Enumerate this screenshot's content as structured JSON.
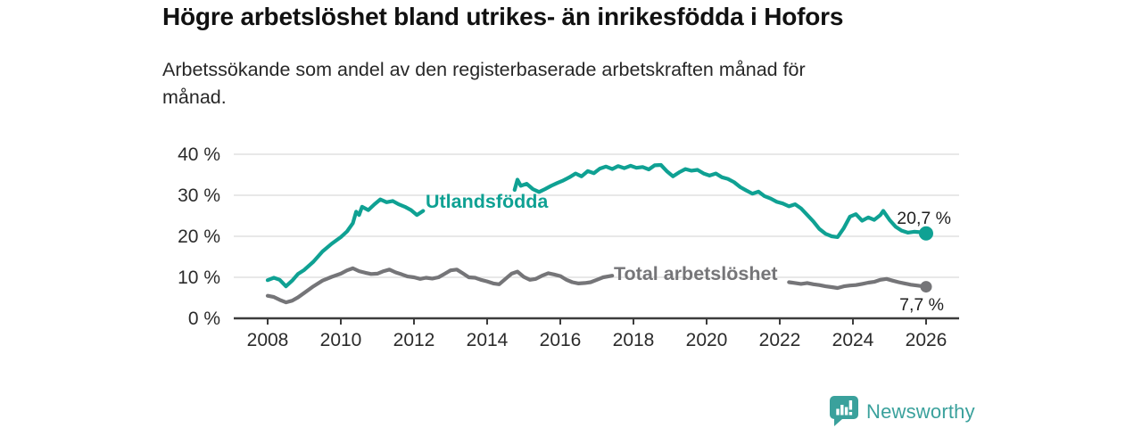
{
  "header": {
    "title": "Högre arbetslöshet bland utrikes- än inrikesfödda i Hofors",
    "subtitle_lines": [
      "Arbetssökande som andel av den registerbaserade arbetskraften månad för",
      "månad."
    ]
  },
  "footer": {
    "brand": "Newsworthy",
    "brand_color": "#3aa19c",
    "logo_icon": "speech-bubble-bar-chart-icon"
  },
  "chart_data": {
    "type": "line",
    "title": "Högre arbetslöshet bland utrikes- än inrikesfödda i Hofors",
    "subtitle": "Arbetssökande som andel av den registerbaserade arbetskraften månad för månad.",
    "grid": "horizontal",
    "legend_position": "inline-labels",
    "colors": {
      "accent_teal": "#0fa193",
      "neutral_gray": "#757578",
      "gridline": "#dbdbdb",
      "axis": "#3c3c3c",
      "text": "#2b2b2b"
    },
    "x_axis": {
      "label": "",
      "range": [
        2007.5,
        2026.9
      ],
      "ticks": [
        {
          "value": 2008,
          "label": "2008"
        },
        {
          "value": 2010,
          "label": "2010"
        },
        {
          "value": 2012,
          "label": "2012"
        },
        {
          "value": 2014,
          "label": "2014"
        },
        {
          "value": 2016,
          "label": "2016"
        },
        {
          "value": 2018,
          "label": "2018"
        },
        {
          "value": 2020,
          "label": "2020"
        },
        {
          "value": 2022,
          "label": "2022"
        },
        {
          "value": 2024,
          "label": "2024"
        },
        {
          "value": 2026,
          "label": "2026"
        }
      ]
    },
    "y_axis": {
      "label": "",
      "unit": "%",
      "range": [
        0,
        42
      ],
      "ticks": [
        {
          "value": 0,
          "label": "0 %"
        },
        {
          "value": 10,
          "label": "10 %"
        },
        {
          "value": 20,
          "label": "20 %"
        },
        {
          "value": 30,
          "label": "30 %"
        },
        {
          "value": 40,
          "label": "40 %"
        }
      ]
    },
    "series": [
      {
        "name": "Utlandsfödda",
        "color": "#0fa193",
        "inline_label": "Utlandsfödda",
        "end_label": "20,7 %",
        "end_value": 20.7,
        "end_dot": true,
        "segments": [
          [
            [
              2008.0,
              9.3
            ],
            [
              2008.17,
              9.9
            ],
            [
              2008.33,
              9.4
            ],
            [
              2008.5,
              7.8
            ],
            [
              2008.67,
              9.2
            ],
            [
              2008.83,
              10.8
            ],
            [
              2009.0,
              11.8
            ],
            [
              2009.25,
              13.8
            ],
            [
              2009.5,
              16.3
            ],
            [
              2009.75,
              18.2
            ],
            [
              2010.0,
              19.8
            ],
            [
              2010.17,
              21.2
            ],
            [
              2010.33,
              23.2
            ],
            [
              2010.42,
              26.0
            ],
            [
              2010.5,
              25.2
            ],
            [
              2010.58,
              27.2
            ],
            [
              2010.75,
              26.4
            ],
            [
              2010.92,
              27.8
            ],
            [
              2011.08,
              29.0
            ],
            [
              2011.25,
              28.3
            ],
            [
              2011.42,
              28.6
            ],
            [
              2011.58,
              27.8
            ],
            [
              2011.75,
              27.2
            ],
            [
              2011.92,
              26.4
            ],
            [
              2012.08,
              25.2
            ],
            [
              2012.25,
              26.2
            ]
          ],
          [
            [
              2014.75,
              31.3
            ],
            [
              2014.83,
              33.8
            ],
            [
              2014.92,
              32.3
            ],
            [
              2015.08,
              32.8
            ],
            [
              2015.25,
              31.5
            ],
            [
              2015.42,
              30.8
            ],
            [
              2015.58,
              31.5
            ],
            [
              2015.75,
              32.3
            ],
            [
              2015.92,
              33.0
            ],
            [
              2016.08,
              33.6
            ],
            [
              2016.25,
              34.4
            ],
            [
              2016.42,
              35.3
            ],
            [
              2016.58,
              34.6
            ],
            [
              2016.75,
              35.9
            ],
            [
              2016.92,
              35.4
            ],
            [
              2017.08,
              36.5
            ],
            [
              2017.25,
              37.0
            ],
            [
              2017.42,
              36.4
            ],
            [
              2017.58,
              37.1
            ],
            [
              2017.75,
              36.6
            ],
            [
              2017.92,
              37.2
            ],
            [
              2018.08,
              36.7
            ],
            [
              2018.25,
              36.9
            ],
            [
              2018.42,
              36.3
            ],
            [
              2018.58,
              37.3
            ],
            [
              2018.75,
              37.4
            ],
            [
              2018.92,
              35.8
            ],
            [
              2019.08,
              34.6
            ],
            [
              2019.25,
              35.6
            ],
            [
              2019.42,
              36.4
            ],
            [
              2019.58,
              36.0
            ],
            [
              2019.75,
              36.2
            ],
            [
              2019.92,
              35.3
            ],
            [
              2020.08,
              34.8
            ],
            [
              2020.25,
              35.3
            ],
            [
              2020.42,
              34.4
            ],
            [
              2020.58,
              34.0
            ],
            [
              2020.75,
              33.2
            ],
            [
              2020.92,
              32.0
            ],
            [
              2021.08,
              31.2
            ],
            [
              2021.25,
              30.4
            ],
            [
              2021.42,
              30.9
            ],
            [
              2021.58,
              29.8
            ],
            [
              2021.75,
              29.2
            ],
            [
              2021.92,
              28.4
            ],
            [
              2022.08,
              28.0
            ],
            [
              2022.25,
              27.3
            ],
            [
              2022.42,
              27.8
            ],
            [
              2022.58,
              26.8
            ],
            [
              2022.75,
              25.2
            ],
            [
              2022.92,
              23.6
            ],
            [
              2023.08,
              21.8
            ],
            [
              2023.25,
              20.6
            ],
            [
              2023.42,
              20.0
            ],
            [
              2023.58,
              19.8
            ],
            [
              2023.75,
              22.0
            ],
            [
              2023.92,
              24.8
            ],
            [
              2024.08,
              25.4
            ],
            [
              2024.25,
              23.8
            ],
            [
              2024.42,
              24.6
            ],
            [
              2024.58,
              24.0
            ],
            [
              2024.75,
              25.2
            ],
            [
              2024.83,
              26.2
            ],
            [
              2025.0,
              24.0
            ],
            [
              2025.17,
              22.3
            ],
            [
              2025.33,
              21.4
            ],
            [
              2025.5,
              20.9
            ],
            [
              2025.67,
              21.1
            ],
            [
              2025.83,
              21.0
            ],
            [
              2026.0,
              20.7
            ]
          ]
        ]
      },
      {
        "name": "Total arbetslöshet",
        "color": "#757578",
        "inline_label": "Total arbetslöshet",
        "end_label": "7,7 %",
        "end_value": 7.7,
        "end_dot": true,
        "segments": [
          [
            [
              2008.0,
              5.5
            ],
            [
              2008.17,
              5.2
            ],
            [
              2008.33,
              4.5
            ],
            [
              2008.5,
              3.9
            ],
            [
              2008.67,
              4.3
            ],
            [
              2008.83,
              5.1
            ],
            [
              2009.0,
              6.2
            ],
            [
              2009.25,
              7.8
            ],
            [
              2009.5,
              9.2
            ],
            [
              2009.75,
              10.1
            ],
            [
              2010.0,
              10.9
            ],
            [
              2010.17,
              11.7
            ],
            [
              2010.33,
              12.2
            ],
            [
              2010.5,
              11.5
            ],
            [
              2010.67,
              11.1
            ],
            [
              2010.83,
              10.8
            ],
            [
              2011.0,
              10.9
            ],
            [
              2011.17,
              11.5
            ],
            [
              2011.33,
              11.9
            ],
            [
              2011.5,
              11.2
            ],
            [
              2011.67,
              10.7
            ],
            [
              2011.83,
              10.2
            ],
            [
              2012.0,
              10.0
            ],
            [
              2012.17,
              9.6
            ],
            [
              2012.33,
              9.9
            ],
            [
              2012.5,
              9.7
            ],
            [
              2012.67,
              10.0
            ],
            [
              2012.83,
              10.8
            ],
            [
              2013.0,
              11.7
            ],
            [
              2013.17,
              11.9
            ],
            [
              2013.33,
              11.0
            ],
            [
              2013.5,
              10.0
            ],
            [
              2013.67,
              9.9
            ],
            [
              2013.83,
              9.4
            ],
            [
              2014.0,
              9.0
            ],
            [
              2014.17,
              8.5
            ],
            [
              2014.33,
              8.3
            ],
            [
              2014.5,
              9.6
            ],
            [
              2014.67,
              10.9
            ],
            [
              2014.83,
              11.4
            ],
            [
              2015.0,
              10.1
            ],
            [
              2015.17,
              9.4
            ],
            [
              2015.33,
              9.6
            ],
            [
              2015.5,
              10.4
            ],
            [
              2015.67,
              11.0
            ],
            [
              2015.83,
              10.7
            ],
            [
              2016.0,
              10.3
            ],
            [
              2016.17,
              9.4
            ],
            [
              2016.33,
              8.8
            ],
            [
              2016.5,
              8.5
            ],
            [
              2016.67,
              8.6
            ],
            [
              2016.83,
              8.8
            ],
            [
              2017.0,
              9.4
            ],
            [
              2017.17,
              10.0
            ],
            [
              2017.42,
              10.4
            ]
          ],
          [
            [
              2022.25,
              8.8
            ],
            [
              2022.42,
              8.6
            ],
            [
              2022.58,
              8.4
            ],
            [
              2022.75,
              8.6
            ],
            [
              2022.92,
              8.3
            ],
            [
              2023.08,
              8.1
            ],
            [
              2023.25,
              7.8
            ],
            [
              2023.42,
              7.6
            ],
            [
              2023.58,
              7.4
            ],
            [
              2023.75,
              7.8
            ],
            [
              2023.92,
              8.0
            ],
            [
              2024.08,
              8.1
            ],
            [
              2024.25,
              8.4
            ],
            [
              2024.42,
              8.7
            ],
            [
              2024.58,
              8.9
            ],
            [
              2024.75,
              9.4
            ],
            [
              2024.92,
              9.6
            ],
            [
              2025.08,
              9.2
            ],
            [
              2025.25,
              8.8
            ],
            [
              2025.42,
              8.5
            ],
            [
              2025.58,
              8.2
            ],
            [
              2025.75,
              8.0
            ],
            [
              2026.0,
              7.7
            ]
          ]
        ]
      }
    ]
  }
}
